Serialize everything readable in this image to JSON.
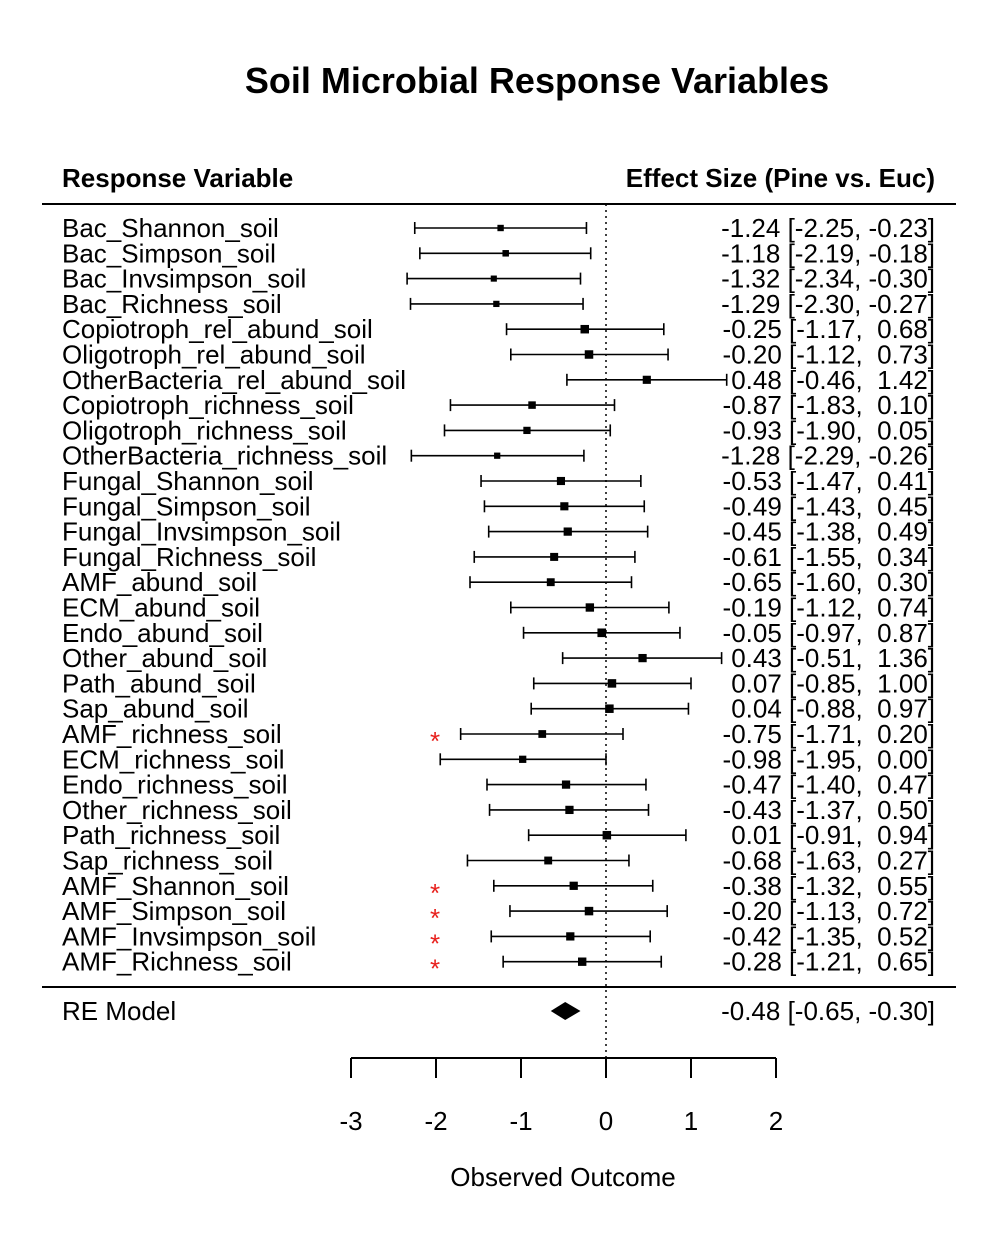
{
  "chart_data": {
    "type": "forest",
    "title": "Soil Microbial Response Variables",
    "left_header": "Response Variable",
    "right_header": "Effect Size (Pine vs. Euc)",
    "xlabel": "Observed Outcome",
    "xlim": [
      -3,
      2
    ],
    "xticks": [
      "-3",
      "-2",
      "-1",
      "0",
      "1",
      "2"
    ],
    "reference_line": 0,
    "significance_marker": "*",
    "colors": {
      "marker": "#000000",
      "significance": "#e8201c"
    },
    "studies": [
      {
        "label": "Bac_Shannon_soil",
        "est": -1.24,
        "lo": -2.25,
        "hi": -0.23,
        "ci_text": "-1.24 [-2.25, -0.23]",
        "sig": false
      },
      {
        "label": "Bac_Simpson_soil",
        "est": -1.18,
        "lo": -2.19,
        "hi": -0.18,
        "ci_text": "-1.18 [-2.19, -0.18]",
        "sig": false
      },
      {
        "label": "Bac_Invsimpson_soil",
        "est": -1.32,
        "lo": -2.34,
        "hi": -0.3,
        "ci_text": "-1.32 [-2.34, -0.30]",
        "sig": false
      },
      {
        "label": "Bac_Richness_soil",
        "est": -1.29,
        "lo": -2.3,
        "hi": -0.27,
        "ci_text": "-1.29 [-2.30, -0.27]",
        "sig": false
      },
      {
        "label": "Copiotroph_rel_abund_soil",
        "est": -0.25,
        "lo": -1.17,
        "hi": 0.68,
        "ci_text": "-0.25 [-1.17,  0.68]",
        "sig": false
      },
      {
        "label": "Oligotroph_rel_abund_soil",
        "est": -0.2,
        "lo": -1.12,
        "hi": 0.73,
        "ci_text": "-0.20 [-1.12,  0.73]",
        "sig": false
      },
      {
        "label": "OtherBacteria_rel_abund_soil",
        "est": 0.48,
        "lo": -0.46,
        "hi": 1.42,
        "ci_text": "0.48 [-0.46,  1.42]",
        "sig": false
      },
      {
        "label": "Copiotroph_richness_soil",
        "est": -0.87,
        "lo": -1.83,
        "hi": 0.1,
        "ci_text": "-0.87 [-1.83,  0.10]",
        "sig": false
      },
      {
        "label": "Oligotroph_richness_soil",
        "est": -0.93,
        "lo": -1.9,
        "hi": 0.05,
        "ci_text": "-0.93 [-1.90,  0.05]",
        "sig": false
      },
      {
        "label": "OtherBacteria_richness_soil",
        "est": -1.28,
        "lo": -2.29,
        "hi": -0.26,
        "ci_text": "-1.28 [-2.29, -0.26]",
        "sig": false
      },
      {
        "label": "Fungal_Shannon_soil",
        "est": -0.53,
        "lo": -1.47,
        "hi": 0.41,
        "ci_text": "-0.53 [-1.47,  0.41]",
        "sig": false
      },
      {
        "label": "Fungal_Simpson_soil",
        "est": -0.49,
        "lo": -1.43,
        "hi": 0.45,
        "ci_text": "-0.49 [-1.43,  0.45]",
        "sig": false
      },
      {
        "label": "Fungal_Invsimpson_soil",
        "est": -0.45,
        "lo": -1.38,
        "hi": 0.49,
        "ci_text": "-0.45 [-1.38,  0.49]",
        "sig": false
      },
      {
        "label": "Fungal_Richness_soil",
        "est": -0.61,
        "lo": -1.55,
        "hi": 0.34,
        "ci_text": "-0.61 [-1.55,  0.34]",
        "sig": false
      },
      {
        "label": "AMF_abund_soil",
        "est": -0.65,
        "lo": -1.6,
        "hi": 0.3,
        "ci_text": "-0.65 [-1.60,  0.30]",
        "sig": false
      },
      {
        "label": "ECM_abund_soil",
        "est": -0.19,
        "lo": -1.12,
        "hi": 0.74,
        "ci_text": "-0.19 [-1.12,  0.74]",
        "sig": false
      },
      {
        "label": "Endo_abund_soil",
        "est": -0.05,
        "lo": -0.97,
        "hi": 0.87,
        "ci_text": "-0.05 [-0.97,  0.87]",
        "sig": false
      },
      {
        "label": "Other_abund_soil",
        "est": 0.43,
        "lo": -0.51,
        "hi": 1.36,
        "ci_text": "0.43 [-0.51,  1.36]",
        "sig": false
      },
      {
        "label": "Path_abund_soil",
        "est": 0.07,
        "lo": -0.85,
        "hi": 1.0,
        "ci_text": "0.07 [-0.85,  1.00]",
        "sig": false
      },
      {
        "label": "Sap_abund_soil",
        "est": 0.04,
        "lo": -0.88,
        "hi": 0.97,
        "ci_text": "0.04 [-0.88,  0.97]",
        "sig": false
      },
      {
        "label": "AMF_richness_soil",
        "est": -0.75,
        "lo": -1.71,
        "hi": 0.2,
        "ci_text": "-0.75 [-1.71,  0.20]",
        "sig": true
      },
      {
        "label": "ECM_richness_soil",
        "est": -0.98,
        "lo": -1.95,
        "hi": 0.0,
        "ci_text": "-0.98 [-1.95,  0.00]",
        "sig": false
      },
      {
        "label": "Endo_richness_soil",
        "est": -0.47,
        "lo": -1.4,
        "hi": 0.47,
        "ci_text": "-0.47 [-1.40,  0.47]",
        "sig": false
      },
      {
        "label": "Other_richness_soil",
        "est": -0.43,
        "lo": -1.37,
        "hi": 0.5,
        "ci_text": "-0.43 [-1.37,  0.50]",
        "sig": false
      },
      {
        "label": "Path_richness_soil",
        "est": 0.01,
        "lo": -0.91,
        "hi": 0.94,
        "ci_text": "0.01 [-0.91,  0.94]",
        "sig": false
      },
      {
        "label": "Sap_richness_soil",
        "est": -0.68,
        "lo": -1.63,
        "hi": 0.27,
        "ci_text": "-0.68 [-1.63,  0.27]",
        "sig": false
      },
      {
        "label": "AMF_Shannon_soil",
        "est": -0.38,
        "lo": -1.32,
        "hi": 0.55,
        "ci_text": "-0.38 [-1.32,  0.55]",
        "sig": true
      },
      {
        "label": "AMF_Simpson_soil",
        "est": -0.2,
        "lo": -1.13,
        "hi": 0.72,
        "ci_text": "-0.20 [-1.13,  0.72]",
        "sig": true
      },
      {
        "label": "AMF_Invsimpson_soil",
        "est": -0.42,
        "lo": -1.35,
        "hi": 0.52,
        "ci_text": "-0.42 [-1.35,  0.52]",
        "sig": true
      },
      {
        "label": "AMF_Richness_soil",
        "est": -0.28,
        "lo": -1.21,
        "hi": 0.65,
        "ci_text": "-0.28 [-1.21,  0.65]",
        "sig": true
      }
    ],
    "summary": {
      "label": "RE Model",
      "est": -0.48,
      "lo": -0.65,
      "hi": -0.3,
      "ci_text": "-0.48 [-0.65, -0.30]"
    }
  }
}
